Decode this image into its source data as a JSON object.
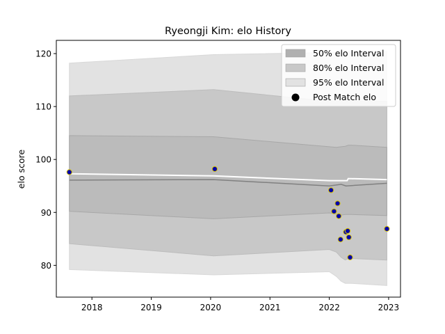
{
  "chart_data": {
    "type": "area",
    "title": "Ryeongji Kim: elo History",
    "xlabel": "",
    "ylabel": "elo score",
    "xlim": [
      2017.4,
      2023.2
    ],
    "ylim": [
      74,
      122.5
    ],
    "x_ticks": [
      2018,
      2019,
      2020,
      2021,
      2022,
      2023
    ],
    "y_ticks": [
      80,
      90,
      100,
      110,
      120
    ],
    "legend_position": "top-right",
    "legend": [
      {
        "label": "50% elo Interval",
        "kind": "band",
        "color": "#b0b0b0"
      },
      {
        "label": "80% elo Interval",
        "kind": "band",
        "color": "#c8c8c8"
      },
      {
        "label": "95% elo Interval",
        "kind": "band",
        "color": "#e2e2e2"
      },
      {
        "label": "Post Match elo",
        "kind": "marker",
        "color": "#000000"
      }
    ],
    "x": [
      2017.62,
      2020.05,
      2022.0,
      2022.12,
      2022.2,
      2022.27,
      2022.32,
      2022.37,
      2022.97
    ],
    "bands": {
      "p95_upper": [
        118.2,
        119.8,
        120.2,
        120.3,
        120.4,
        120.4,
        120.4,
        120.4,
        120.4
      ],
      "p80_upper": [
        112.0,
        113.2,
        111.0,
        111.0,
        111.0,
        111.0,
        111.0,
        111.0,
        111.0
      ],
      "p50_upper": [
        104.5,
        104.3,
        102.4,
        102.3,
        102.4,
        102.5,
        102.7,
        102.7,
        102.3
      ],
      "p50_lower": [
        90.2,
        88.8,
        89.9,
        89.7,
        89.5,
        89.6,
        89.6,
        89.6,
        89.4
      ],
      "p80_lower": [
        84.1,
        81.8,
        83.0,
        82.5,
        81.5,
        81.0,
        81.3,
        81.3,
        81.0
      ],
      "p95_lower": [
        79.2,
        78.2,
        78.8,
        77.9,
        77.0,
        76.6,
        76.6,
        76.6,
        76.2
      ]
    },
    "series": [
      {
        "name": "",
        "role": "mean-line",
        "color": "#ffffff",
        "x": [
          2017.62,
          2020.05,
          2022.0,
          2022.3,
          2022.32,
          2022.97
        ],
        "values": [
          97.3,
          96.9,
          96.0,
          96.0,
          96.4,
          96.2
        ]
      },
      {
        "name": "",
        "role": "median-line",
        "color": "#808080",
        "x": [
          2017.62,
          2020.05,
          2022.0,
          2022.2,
          2022.28,
          2022.97
        ],
        "values": [
          96.1,
          96.2,
          95.0,
          95.3,
          95.0,
          95.5
        ]
      },
      {
        "name": "Post Match elo",
        "role": "points",
        "color": "#0000aa",
        "edge_color": "#d4c000",
        "points": [
          {
            "x": 2017.62,
            "y": 97.6
          },
          {
            "x": 2020.07,
            "y": 98.2
          },
          {
            "x": 2022.03,
            "y": 94.2
          },
          {
            "x": 2022.08,
            "y": 90.2
          },
          {
            "x": 2022.14,
            "y": 91.7
          },
          {
            "x": 2022.16,
            "y": 89.3
          },
          {
            "x": 2022.19,
            "y": 84.9
          },
          {
            "x": 2022.28,
            "y": 86.3
          },
          {
            "x": 2022.31,
            "y": 86.5
          },
          {
            "x": 2022.33,
            "y": 85.3
          },
          {
            "x": 2022.35,
            "y": 81.5
          },
          {
            "x": 2022.97,
            "y": 86.9
          }
        ]
      }
    ]
  }
}
